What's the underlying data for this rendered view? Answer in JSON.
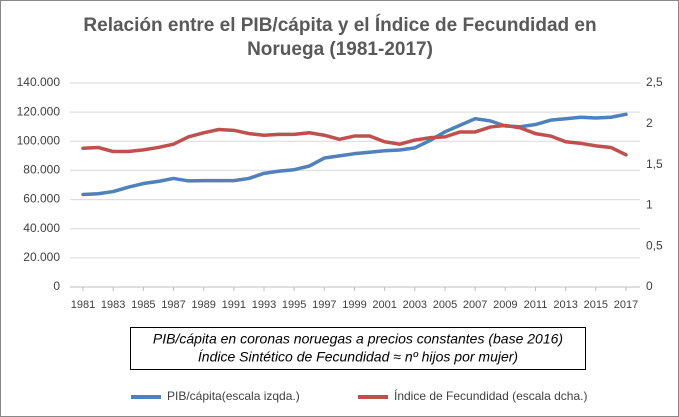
{
  "chart_data": {
    "type": "line",
    "title": [
      "Relación entre el PIB/cápita y el Índice de Fecundidad en",
      "Noruega (1981-2017)"
    ],
    "annotations": [
      "PIB/cápita en coronas noruegas a precios constantes (base 2016)",
      "Índice Sintético de Fecundidad ≈ nº hijos por mujer)"
    ],
    "x": [
      1981,
      1982,
      1983,
      1984,
      1985,
      1986,
      1987,
      1988,
      1989,
      1990,
      1991,
      1992,
      1993,
      1994,
      1995,
      1996,
      1997,
      1998,
      1999,
      2000,
      2001,
      2002,
      2003,
      2004,
      2005,
      2006,
      2007,
      2008,
      2009,
      2010,
      2011,
      2012,
      2013,
      2014,
      2015,
      2016,
      2017
    ],
    "xlim": [
      1981,
      2017
    ],
    "xticks": [
      1981,
      1983,
      1985,
      1987,
      1989,
      1991,
      1993,
      1995,
      1997,
      1999,
      2001,
      2003,
      2005,
      2007,
      2009,
      2011,
      2013,
      2015,
      2017
    ],
    "ylim": [
      0,
      140000
    ],
    "yticks": [
      0,
      {
        "value": 20000,
        "label": "20.000"
      },
      {
        "value": 40000,
        "label": "40.000"
      },
      {
        "value": 60000,
        "label": "60.000"
      },
      {
        "value": 80000,
        "label": "80.000"
      },
      {
        "value": 100000,
        "label": "100.000"
      },
      {
        "value": 120000,
        "label": "120.000"
      },
      {
        "value": 140000,
        "label": "140.000"
      }
    ],
    "y2lim": [
      0,
      2.5
    ],
    "y2ticks": [
      0,
      {
        "value": 0.5,
        "label": "0,5"
      },
      1,
      {
        "value": 1.5,
        "label": "1,5"
      },
      2,
      {
        "value": 2.5,
        "label": "2,5"
      }
    ],
    "grid": true,
    "legend": "bottom",
    "series": [
      {
        "name": "PIB/cápita(escala izqda.)",
        "color": "#4f81bd",
        "values": [
          63500,
          64000,
          65500,
          68500,
          71000,
          72500,
          74500,
          72800,
          73000,
          73000,
          73000,
          74500,
          78000,
          79500,
          80500,
          83000,
          88500,
          90000,
          91500,
          92500,
          93500,
          94000,
          95500,
          100500,
          106500,
          111000,
          115500,
          114000,
          110500,
          110000,
          111500,
          114500,
          115500,
          116500,
          116000,
          116500,
          118500
        ]
      },
      {
        "name": "Índice de Fecundidad (escala dcha.)",
        "color": "#c0504d",
        "axis": "y2",
        "values": [
          1.7,
          1.71,
          1.66,
          1.66,
          1.68,
          1.71,
          1.75,
          1.84,
          1.89,
          1.93,
          1.92,
          1.88,
          1.86,
          1.87,
          1.87,
          1.89,
          1.86,
          1.81,
          1.85,
          1.85,
          1.78,
          1.75,
          1.8,
          1.83,
          1.84,
          1.9,
          1.9,
          1.96,
          1.98,
          1.95,
          1.88,
          1.85,
          1.78,
          1.76,
          1.73,
          1.71,
          1.62
        ]
      }
    ]
  }
}
